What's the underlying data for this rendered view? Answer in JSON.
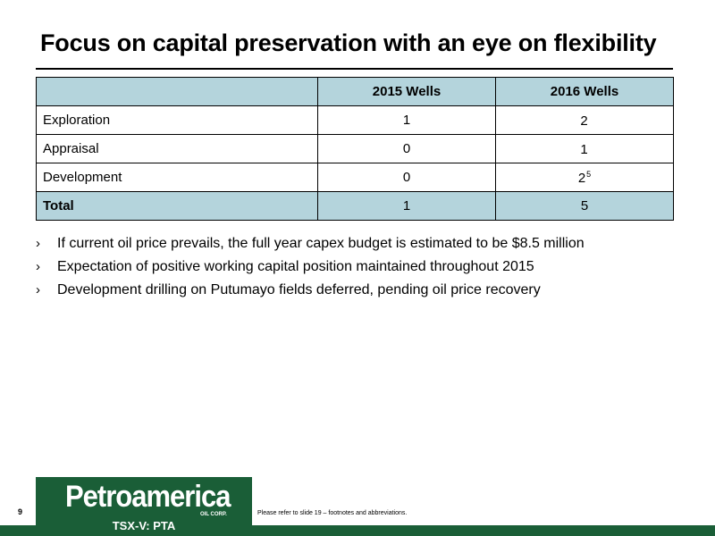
{
  "title": "Focus on capital preservation with an eye on flexibility",
  "table": {
    "headers": [
      "",
      "2015 Wells",
      "2016 Wells"
    ],
    "rows": [
      {
        "label": "Exploration",
        "w2015": "1",
        "w2016": "2",
        "w2016_sup": ""
      },
      {
        "label": "Appraisal",
        "w2015": "0",
        "w2016": "1",
        "w2016_sup": ""
      },
      {
        "label": "Development",
        "w2015": "0",
        "w2016": "2",
        "w2016_sup": "5"
      }
    ],
    "total": {
      "label": "Total",
      "w2015": "1",
      "w2016": "5"
    }
  },
  "bullets": [
    "If current oil price prevails, the full year capex budget is estimated to be $8.5 million",
    "Expectation of positive working capital position maintained throughout 2015",
    "Development drilling on Putumayo fields deferred, pending oil price recovery"
  ],
  "footer": {
    "page_number": "9",
    "logo_name": "Petroamerica",
    "logo_sub": "OIL CORP.",
    "ticker": "TSX-V: PTA",
    "footnote": "Please refer to slide 19 – footnotes and abbreviations."
  },
  "colors": {
    "brand_green": "#1a5e37",
    "table_header": "#b4d4dc"
  },
  "icons": {
    "bullet": "chevron-right-icon"
  }
}
